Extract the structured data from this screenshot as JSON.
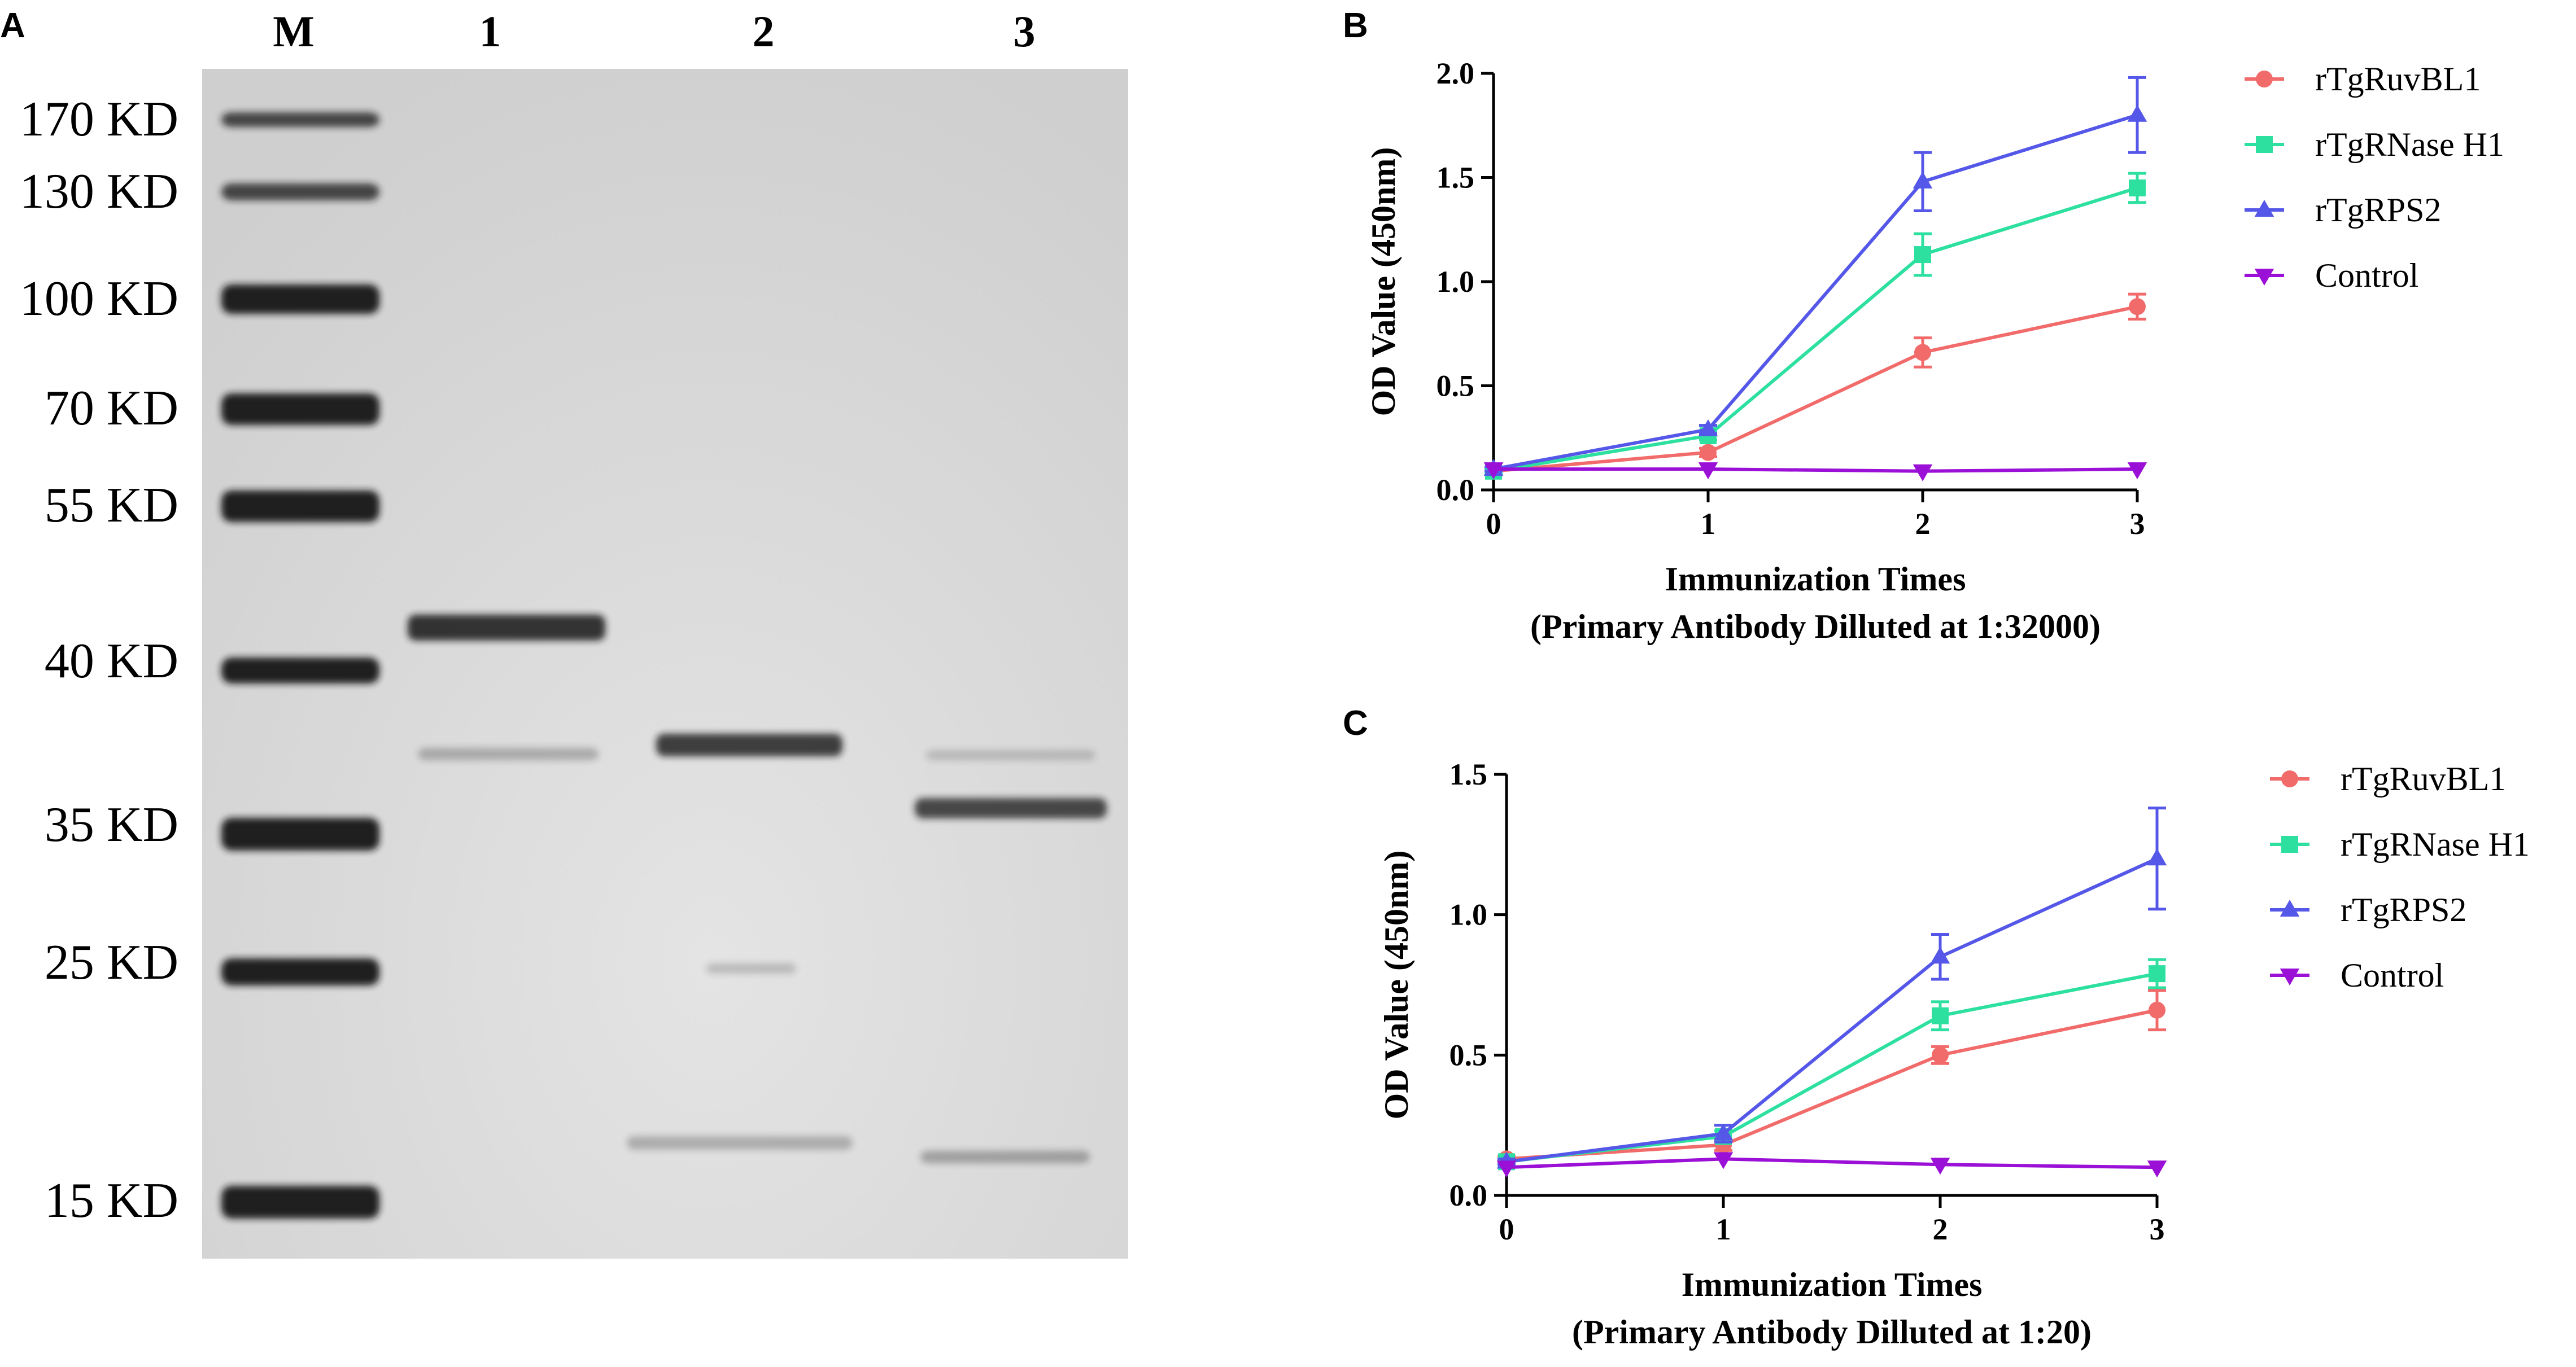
{
  "panels": {
    "a": "A",
    "b": "B",
    "c": "C"
  },
  "gel": {
    "lane_labels": [
      "M",
      "1",
      "2",
      "3"
    ],
    "marker_labels": [
      "170 KD",
      "130 KD",
      "100 KD",
      "70 KD",
      "55 KD",
      "40 KD",
      "35 KD",
      "25 KD",
      "15 KD"
    ],
    "colors": {
      "background": "#d6d6d6",
      "band": "#141414"
    }
  },
  "chart_data": [
    {
      "type": "line",
      "panel": "B",
      "x": [
        0,
        1,
        2,
        3
      ],
      "xlim": [
        0,
        3
      ],
      "ylim": [
        0,
        2.0
      ],
      "xticks": [
        "0",
        "1",
        "2",
        "3"
      ],
      "yticks": [
        "0.0",
        "0.5",
        "1.0",
        "1.5",
        "2.0"
      ],
      "xlabel": "Immunization Times",
      "xlabel2": "(Primary Antibody Dilluted at 1:32000)",
      "ylabel": "OD Value (450nm)",
      "legend_position": "right",
      "grid": false,
      "series": [
        {
          "name": "rTgRuvBL1",
          "marker": "circle",
          "color": "#f26b6b",
          "values": [
            0.09,
            0.18,
            0.66,
            0.88
          ],
          "errors": [
            0.01,
            0.02,
            0.07,
            0.06
          ]
        },
        {
          "name": "rTgRNase H1",
          "marker": "square",
          "color": "#2ee0a0",
          "values": [
            0.09,
            0.26,
            1.13,
            1.45
          ],
          "errors": [
            0.01,
            0.02,
            0.1,
            0.07
          ]
        },
        {
          "name": "rTgRPS2",
          "marker": "triangle-up",
          "color": "#5557e8",
          "values": [
            0.1,
            0.29,
            1.48,
            1.8
          ],
          "errors": [
            0.01,
            0.02,
            0.14,
            0.18
          ]
        },
        {
          "name": "Control",
          "marker": "triangle-down",
          "color": "#9b10d6",
          "values": [
            0.1,
            0.1,
            0.09,
            0.1
          ],
          "errors": [
            0.0,
            0.0,
            0.0,
            0.0
          ]
        }
      ]
    },
    {
      "type": "line",
      "panel": "C",
      "x": [
        0,
        1,
        2,
        3
      ],
      "xlim": [
        0,
        3
      ],
      "ylim": [
        0,
        1.5
      ],
      "xticks": [
        "0",
        "1",
        "2",
        "3"
      ],
      "yticks": [
        "0.0",
        "0.5",
        "1.0",
        "1.5"
      ],
      "xlabel": "Immunization Times",
      "xlabel2": "(Primary Antibody Dilluted at 1:20)",
      "ylabel": "OD Value (450nm)",
      "legend_position": "right",
      "grid": false,
      "series": [
        {
          "name": "rTgRuvBL1",
          "marker": "circle",
          "color": "#f26b6b",
          "values": [
            0.13,
            0.18,
            0.5,
            0.66
          ],
          "errors": [
            0.01,
            0.02,
            0.03,
            0.07
          ]
        },
        {
          "name": "rTgRNase H1",
          "marker": "square",
          "color": "#2ee0a0",
          "values": [
            0.12,
            0.21,
            0.64,
            0.79
          ],
          "errors": [
            0.01,
            0.02,
            0.05,
            0.05
          ]
        },
        {
          "name": "rTgRPS2",
          "marker": "triangle-up",
          "color": "#5557e8",
          "values": [
            0.12,
            0.22,
            0.85,
            1.2
          ],
          "errors": [
            0.01,
            0.03,
            0.08,
            0.18
          ]
        },
        {
          "name": "Control",
          "marker": "triangle-down",
          "color": "#9b10d6",
          "values": [
            0.1,
            0.13,
            0.11,
            0.1
          ],
          "errors": [
            0.0,
            0.0,
            0.0,
            0.0
          ]
        }
      ]
    }
  ]
}
